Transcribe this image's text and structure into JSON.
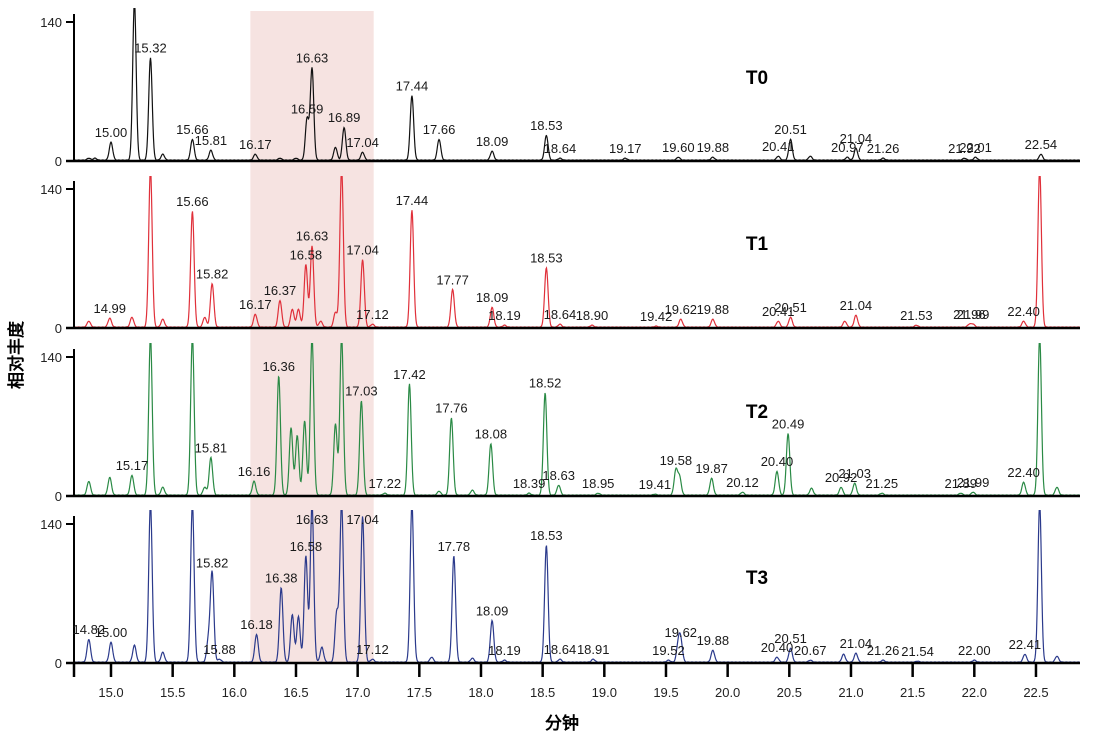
{
  "chart_data": {
    "type": "line",
    "title": "",
    "xlabel": "分钟",
    "ylabel": "相对丰度",
    "xlim": [
      14.7,
      22.86
    ],
    "ylim": [
      0,
      140
    ],
    "x_ticks": [
      "15.0",
      "15.5",
      "16.0",
      "16.5",
      "17.0",
      "17.5",
      "18.0",
      "18.5",
      "19.0",
      "19.5",
      "20.0",
      "20.5",
      "21.0",
      "21.5",
      "22.0",
      "22.5"
    ],
    "y_ticks": [
      "0",
      "140"
    ],
    "grid": false,
    "highlight_region": {
      "x_start": 16.13,
      "x_end": 17.13,
      "color": "#f6e3e1"
    },
    "series": [
      {
        "name": "T0",
        "color": "#111111",
        "peaks": [
          [
            14.82,
            2
          ],
          [
            14.87,
            2
          ],
          [
            15.0,
            18
          ],
          [
            15.19,
            160
          ],
          [
            15.32,
            103
          ],
          [
            15.42,
            6
          ],
          [
            15.66,
            21
          ],
          [
            15.81,
            10
          ],
          [
            16.17,
            6
          ],
          [
            16.37,
            2
          ],
          [
            16.5,
            2
          ],
          [
            16.59,
            42
          ],
          [
            16.63,
            93
          ],
          [
            16.82,
            13
          ],
          [
            16.89,
            33
          ],
          [
            17.04,
            8
          ],
          [
            17.44,
            65
          ],
          [
            17.66,
            21
          ],
          [
            18.09,
            9
          ],
          [
            18.53,
            25
          ],
          [
            18.64,
            2
          ],
          [
            19.17,
            2
          ],
          [
            19.6,
            3
          ],
          [
            19.88,
            3
          ],
          [
            20.41,
            4
          ],
          [
            20.51,
            21
          ],
          [
            20.67,
            4
          ],
          [
            20.97,
            3
          ],
          [
            21.04,
            12
          ],
          [
            21.26,
            2
          ],
          [
            21.92,
            2
          ],
          [
            22.01,
            3
          ],
          [
            22.54,
            6
          ]
        ],
        "labels": [
          {
            "x": 15.0,
            "text": "15.00"
          },
          {
            "x": 15.32,
            "text": "15.32"
          },
          {
            "x": 15.66,
            "text": "15.66"
          },
          {
            "x": 15.81,
            "text": "15.81"
          },
          {
            "x": 16.17,
            "text": "16.17"
          },
          {
            "x": 16.59,
            "text": "16.59"
          },
          {
            "x": 16.63,
            "text": "16.63"
          },
          {
            "x": 16.89,
            "text": "16.89"
          },
          {
            "x": 17.04,
            "text": "17.04"
          },
          {
            "x": 17.44,
            "text": "17.44"
          },
          {
            "x": 17.66,
            "text": "17.66"
          },
          {
            "x": 18.09,
            "text": "18.09"
          },
          {
            "x": 18.53,
            "text": "18.53"
          },
          {
            "x": 18.64,
            "text": "18.64"
          },
          {
            "x": 19.17,
            "text": "19.17"
          },
          {
            "x": 19.6,
            "text": "19.60"
          },
          {
            "x": 19.88,
            "text": "19.88"
          },
          {
            "x": 20.41,
            "text": "20.41"
          },
          {
            "x": 20.51,
            "text": "20.51"
          },
          {
            "x": 20.97,
            "text": "20.97"
          },
          {
            "x": 21.04,
            "text": "21.04"
          },
          {
            "x": 21.26,
            "text": "21.26"
          },
          {
            "x": 21.92,
            "text": "21.92"
          },
          {
            "x": 22.01,
            "text": "22.01"
          },
          {
            "x": 22.54,
            "text": "22.54"
          }
        ]
      },
      {
        "name": "T1",
        "color": "#e0303a",
        "peaks": [
          [
            14.82,
            6
          ],
          [
            14.99,
            9
          ],
          [
            15.17,
            10
          ],
          [
            15.32,
            160
          ],
          [
            15.42,
            8
          ],
          [
            15.66,
            117
          ],
          [
            15.76,
            10
          ],
          [
            15.82,
            44
          ],
          [
            16.17,
            13
          ],
          [
            16.37,
            27
          ],
          [
            16.47,
            18
          ],
          [
            16.52,
            18
          ],
          [
            16.58,
            63
          ],
          [
            16.63,
            82
          ],
          [
            16.7,
            6
          ],
          [
            16.82,
            15
          ],
          [
            16.87,
            160
          ],
          [
            17.04,
            68
          ],
          [
            17.12,
            3
          ],
          [
            17.44,
            118
          ],
          [
            17.77,
            38
          ],
          [
            18.09,
            20
          ],
          [
            18.19,
            2
          ],
          [
            18.53,
            60
          ],
          [
            18.64,
            3
          ],
          [
            18.9,
            2
          ],
          [
            19.42,
            1
          ],
          [
            19.62,
            8
          ],
          [
            19.88,
            8
          ],
          [
            20.41,
            6
          ],
          [
            20.51,
            10
          ],
          [
            20.95,
            6
          ],
          [
            21.04,
            12
          ],
          [
            21.53,
            2
          ],
          [
            21.96,
            3
          ],
          [
            21.99,
            3
          ],
          [
            22.4,
            6
          ],
          [
            22.53,
            160
          ]
        ],
        "labels": [
          {
            "x": 14.99,
            "text": "14.99"
          },
          {
            "x": 15.66,
            "text": "15.66"
          },
          {
            "x": 15.82,
            "text": "15.82"
          },
          {
            "x": 16.17,
            "text": "16.17"
          },
          {
            "x": 16.37,
            "text": "16.37"
          },
          {
            "x": 16.58,
            "text": "16.58"
          },
          {
            "x": 16.63,
            "text": "16.63"
          },
          {
            "x": 17.04,
            "text": "17.04"
          },
          {
            "x": 17.12,
            "text": "17.12"
          },
          {
            "x": 17.44,
            "text": "17.44"
          },
          {
            "x": 17.77,
            "text": "17.77"
          },
          {
            "x": 18.09,
            "text": "18.09"
          },
          {
            "x": 18.19,
            "text": "18.19"
          },
          {
            "x": 18.53,
            "text": "18.53"
          },
          {
            "x": 18.64,
            "text": "18.64"
          },
          {
            "x": 18.9,
            "text": "18.90"
          },
          {
            "x": 19.42,
            "text": "19.42"
          },
          {
            "x": 19.62,
            "text": "19.62"
          },
          {
            "x": 19.88,
            "text": "19.88"
          },
          {
            "x": 20.41,
            "text": "20.41"
          },
          {
            "x": 20.51,
            "text": "20.51"
          },
          {
            "x": 21.04,
            "text": "21.04"
          },
          {
            "x": 21.53,
            "text": "21.53"
          },
          {
            "x": 21.96,
            "text": "21.96"
          },
          {
            "x": 21.99,
            "text": "21.99"
          },
          {
            "x": 22.4,
            "text": "22.40"
          }
        ]
      },
      {
        "name": "T2",
        "color": "#2a8a45",
        "peaks": [
          [
            14.82,
            14
          ],
          [
            14.99,
            18
          ],
          [
            15.17,
            20
          ],
          [
            15.32,
            160
          ],
          [
            15.42,
            8
          ],
          [
            15.66,
            160
          ],
          [
            15.76,
            8
          ],
          [
            15.81,
            38
          ],
          [
            16.16,
            14
          ],
          [
            16.36,
            120
          ],
          [
            16.46,
            68
          ],
          [
            16.51,
            60
          ],
          [
            16.57,
            75
          ],
          [
            16.63,
            160
          ],
          [
            16.82,
            72
          ],
          [
            16.87,
            160
          ],
          [
            17.03,
            95
          ],
          [
            17.22,
            2
          ],
          [
            17.42,
            112
          ],
          [
            17.66,
            4
          ],
          [
            17.76,
            78
          ],
          [
            17.93,
            5
          ],
          [
            18.08,
            52
          ],
          [
            18.39,
            2
          ],
          [
            18.52,
            103
          ],
          [
            18.63,
            10
          ],
          [
            18.95,
            2
          ],
          [
            19.41,
            1
          ],
          [
            19.58,
            25
          ],
          [
            19.61,
            18
          ],
          [
            19.87,
            17
          ],
          [
            20.12,
            3
          ],
          [
            20.4,
            24
          ],
          [
            20.49,
            62
          ],
          [
            20.68,
            7
          ],
          [
            20.92,
            8
          ],
          [
            21.03,
            12
          ],
          [
            21.25,
            2
          ],
          [
            21.89,
            2
          ],
          [
            21.99,
            3
          ],
          [
            22.4,
            13
          ],
          [
            22.53,
            160
          ],
          [
            22.67,
            8
          ]
        ],
        "labels": [
          {
            "x": 15.17,
            "text": "15.17"
          },
          {
            "x": 15.81,
            "text": "15.81"
          },
          {
            "x": 16.16,
            "text": "16.16"
          },
          {
            "x": 16.36,
            "text": "16.36"
          },
          {
            "x": 17.03,
            "text": "17.03"
          },
          {
            "x": 17.22,
            "text": "17.22"
          },
          {
            "x": 17.42,
            "text": "17.42"
          },
          {
            "x": 17.76,
            "text": "17.76"
          },
          {
            "x": 18.08,
            "text": "18.08"
          },
          {
            "x": 18.39,
            "text": "18.39"
          },
          {
            "x": 18.52,
            "text": "18.52"
          },
          {
            "x": 18.63,
            "text": "18.63"
          },
          {
            "x": 18.95,
            "text": "18.95"
          },
          {
            "x": 19.41,
            "text": "19.41"
          },
          {
            "x": 19.58,
            "text": "19.58"
          },
          {
            "x": 19.87,
            "text": "19.87"
          },
          {
            "x": 20.12,
            "text": "20.12"
          },
          {
            "x": 20.4,
            "text": "20.40"
          },
          {
            "x": 20.49,
            "text": "20.49"
          },
          {
            "x": 20.92,
            "text": "20.92"
          },
          {
            "x": 21.03,
            "text": "21.03"
          },
          {
            "x": 21.25,
            "text": "21.25"
          },
          {
            "x": 21.89,
            "text": "21.89"
          },
          {
            "x": 21.99,
            "text": "21.99"
          },
          {
            "x": 22.4,
            "text": "22.40"
          }
        ]
      },
      {
        "name": "T3",
        "color": "#2b3a8c",
        "peaks": [
          [
            14.82,
            23
          ],
          [
            15.0,
            20
          ],
          [
            15.19,
            17
          ],
          [
            15.32,
            160
          ],
          [
            15.42,
            10
          ],
          [
            15.66,
            160
          ],
          [
            15.79,
            22
          ],
          [
            15.82,
            90
          ],
          [
            15.88,
            3
          ],
          [
            16.18,
            28
          ],
          [
            16.38,
            75
          ],
          [
            16.47,
            48
          ],
          [
            16.52,
            46
          ],
          [
            16.58,
            107
          ],
          [
            16.63,
            160
          ],
          [
            16.71,
            15
          ],
          [
            16.83,
            50
          ],
          [
            16.87,
            160
          ],
          [
            17.04,
            147
          ],
          [
            17.12,
            3
          ],
          [
            17.44,
            160
          ],
          [
            17.6,
            5
          ],
          [
            17.78,
            107
          ],
          [
            17.93,
            4
          ],
          [
            18.09,
            42
          ],
          [
            18.19,
            2
          ],
          [
            18.53,
            118
          ],
          [
            18.64,
            3
          ],
          [
            18.91,
            3
          ],
          [
            19.52,
            2
          ],
          [
            19.6,
            18
          ],
          [
            19.62,
            20
          ],
          [
            19.88,
            12
          ],
          [
            20.4,
            5
          ],
          [
            20.51,
            14
          ],
          [
            20.67,
            2
          ],
          [
            20.94,
            8
          ],
          [
            21.04,
            9
          ],
          [
            21.26,
            2
          ],
          [
            21.54,
            1
          ],
          [
            22.0,
            2
          ],
          [
            22.41,
            8
          ],
          [
            22.53,
            160
          ],
          [
            22.67,
            6
          ]
        ],
        "labels": [
          {
            "x": 14.82,
            "text": "14.82"
          },
          {
            "x": 15.0,
            "text": "15.00"
          },
          {
            "x": 15.82,
            "text": "15.82"
          },
          {
            "x": 15.88,
            "text": "15.88"
          },
          {
            "x": 16.18,
            "text": "16.18"
          },
          {
            "x": 16.38,
            "text": "16.38"
          },
          {
            "x": 16.58,
            "text": "16.58"
          },
          {
            "x": 16.63,
            "text": "16.63"
          },
          {
            "x": 17.04,
            "text": "17.04"
          },
          {
            "x": 17.12,
            "text": "17.12"
          },
          {
            "x": 17.78,
            "text": "17.78"
          },
          {
            "x": 18.09,
            "text": "18.09"
          },
          {
            "x": 18.19,
            "text": "18.19"
          },
          {
            "x": 18.53,
            "text": "18.53"
          },
          {
            "x": 18.64,
            "text": "18.64"
          },
          {
            "x": 18.91,
            "text": "18.91"
          },
          {
            "x": 19.52,
            "text": "19.52"
          },
          {
            "x": 19.62,
            "text": "19.62"
          },
          {
            "x": 19.88,
            "text": "19.88"
          },
          {
            "x": 20.4,
            "text": "20.40"
          },
          {
            "x": 20.51,
            "text": "20.51"
          },
          {
            "x": 20.67,
            "text": "20.67"
          },
          {
            "x": 21.04,
            "text": "21.04"
          },
          {
            "x": 21.26,
            "text": "21.26"
          },
          {
            "x": 21.54,
            "text": "21.54"
          },
          {
            "x": 22.0,
            "text": "22.00"
          },
          {
            "x": 22.41,
            "text": "22.41"
          }
        ]
      }
    ]
  }
}
